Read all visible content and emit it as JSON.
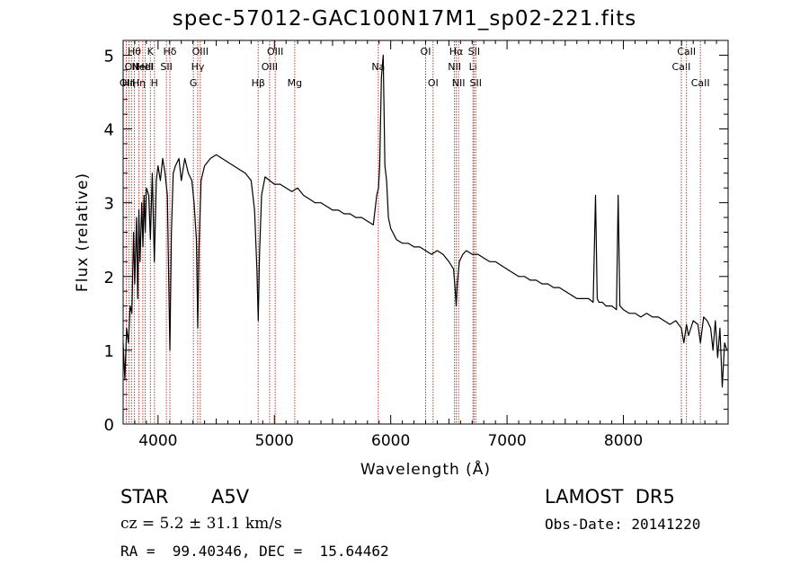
{
  "header": {
    "title": "spec-57012-GAC100N17M1_sp02-221.fits"
  },
  "info": {
    "object_class": "STAR",
    "subclass": "A5V",
    "cz": "cz = 5.2 ± 31.1 km/s",
    "radec": "RA =  99.40346, DEC =  15.64462",
    "survey": "LAMOST  DR5",
    "obs_date": "Obs-Date: 20141220"
  },
  "chart_data": {
    "type": "line",
    "xlabel": "Wavelength (Å)",
    "ylabel": "Flux (relative)",
    "xlim": [
      3700,
      8900
    ],
    "ylim": [
      0,
      5.2
    ],
    "xticks": [
      4000,
      5000,
      6000,
      7000,
      8000
    ],
    "yticks": [
      0,
      1,
      2,
      3,
      4,
      5
    ],
    "line_color": "#000000",
    "marker_color": "#c0392b",
    "series": [
      {
        "x": [
          3700,
          3715,
          3730,
          3745,
          3760,
          3775,
          3790,
          3800,
          3815,
          3825,
          3835,
          3845,
          3860,
          3870,
          3880,
          3890,
          3900,
          3920,
          3934,
          3950,
          3968,
          3985,
          4000,
          4020,
          4040,
          4060,
          4080,
          4090,
          4102,
          4115,
          4130,
          4150,
          4180,
          4200,
          4230,
          4260,
          4290,
          4310,
          4330,
          4341,
          4352,
          4370,
          4400,
          4450,
          4500,
          4550,
          4600,
          4650,
          4700,
          4750,
          4800,
          4830,
          4850,
          4861,
          4872,
          4890,
          4920,
          4960,
          5000,
          5050,
          5100,
          5150,
          5200,
          5250,
          5300,
          5350,
          5400,
          5450,
          5500,
          5550,
          5600,
          5650,
          5700,
          5750,
          5800,
          5850,
          5880,
          5895,
          5905,
          5920,
          5935,
          5950,
          5965,
          5980,
          6000,
          6050,
          6100,
          6150,
          6200,
          6250,
          6300,
          6350,
          6400,
          6450,
          6500,
          6540,
          6555,
          6563,
          6572,
          6590,
          6620,
          6650,
          6700,
          6750,
          6800,
          6850,
          6900,
          6950,
          7000,
          7050,
          7100,
          7150,
          7200,
          7250,
          7300,
          7350,
          7400,
          7450,
          7500,
          7550,
          7600,
          7650,
          7700,
          7740,
          7760,
          7775,
          7790,
          7820,
          7850,
          7900,
          7940,
          7955,
          7970,
          8000,
          8050,
          8100,
          8150,
          8200,
          8250,
          8300,
          8350,
          8400,
          8450,
          8498,
          8520,
          8542,
          8560,
          8600,
          8640,
          8662,
          8690,
          8720,
          8750,
          8770,
          8790,
          8810,
          8830,
          8850,
          8870,
          8890
        ],
        "y": [
          1.1,
          0.6,
          1.3,
          1.1,
          1.6,
          1.5,
          2.6,
          1.9,
          2.8,
          1.7,
          2.9,
          2.2,
          3.0,
          2.4,
          3.1,
          2.6,
          3.2,
          3.1,
          2.5,
          3.4,
          2.2,
          3.3,
          3.5,
          3.3,
          3.6,
          3.4,
          3.1,
          2.1,
          1.0,
          2.6,
          3.4,
          3.5,
          3.6,
          3.3,
          3.6,
          3.4,
          3.3,
          3.0,
          2.5,
          1.3,
          2.4,
          3.3,
          3.5,
          3.6,
          3.65,
          3.6,
          3.55,
          3.5,
          3.45,
          3.4,
          3.3,
          2.9,
          2.1,
          1.4,
          2.3,
          3.1,
          3.35,
          3.3,
          3.25,
          3.25,
          3.2,
          3.15,
          3.2,
          3.1,
          3.05,
          3.0,
          3.0,
          2.95,
          2.9,
          2.9,
          2.85,
          2.85,
          2.8,
          2.8,
          2.75,
          2.7,
          3.1,
          3.2,
          3.5,
          4.7,
          5.0,
          3.5,
          3.3,
          2.8,
          2.65,
          2.5,
          2.45,
          2.45,
          2.4,
          2.4,
          2.35,
          2.3,
          2.35,
          2.3,
          2.2,
          2.1,
          1.8,
          1.6,
          1.9,
          2.2,
          2.3,
          2.35,
          2.3,
          2.3,
          2.25,
          2.2,
          2.2,
          2.15,
          2.1,
          2.05,
          2.0,
          2.0,
          1.95,
          1.95,
          1.9,
          1.9,
          1.85,
          1.85,
          1.8,
          1.75,
          1.7,
          1.7,
          1.7,
          1.65,
          3.1,
          1.7,
          1.65,
          1.65,
          1.6,
          1.6,
          1.55,
          3.1,
          1.6,
          1.55,
          1.5,
          1.5,
          1.45,
          1.5,
          1.45,
          1.45,
          1.4,
          1.35,
          1.4,
          1.3,
          1.1,
          1.35,
          1.2,
          1.4,
          1.35,
          1.1,
          1.45,
          1.4,
          1.3,
          1.0,
          1.4,
          0.9,
          1.3,
          0.5,
          1.1,
          1.0
        ]
      }
    ],
    "line_markers": [
      {
        "x": 3727,
        "label": "OII",
        "row": 3
      },
      {
        "x": 3750,
        "label": "Hη",
        "row": 3
      },
      {
        "x": 3771,
        "label": "OII",
        "row": 2
      },
      {
        "x": 3797,
        "label": "Hθ",
        "row": 1
      },
      {
        "x": 3835,
        "label": "Hη",
        "row": 3
      },
      {
        "x": 3869,
        "label": "NeIII",
        "row": 2
      },
      {
        "x": 3889,
        "label": "HeI",
        "row": 2
      },
      {
        "x": 3934,
        "label": "K",
        "row": 1
      },
      {
        "x": 3969,
        "label": "H",
        "row": 3
      },
      {
        "x": 4072,
        "label": "SII",
        "row": 2
      },
      {
        "x": 4102,
        "label": "Hδ",
        "row": 1
      },
      {
        "x": 4304,
        "label": "G",
        "row": 3
      },
      {
        "x": 4341,
        "label": "Hγ",
        "row": 2
      },
      {
        "x": 4363,
        "label": "OIII",
        "row": 1
      },
      {
        "x": 4861,
        "label": "Hβ",
        "row": 3
      },
      {
        "x": 4959,
        "label": "OIII",
        "row": 2
      },
      {
        "x": 5007,
        "label": "OIII",
        "row": 1
      },
      {
        "x": 5175,
        "label": "Mg",
        "row": 3
      },
      {
        "x": 5893,
        "label": "Na",
        "row": 2
      },
      {
        "x": 6300,
        "label": "OI",
        "row": 1
      },
      {
        "x": 6364,
        "label": "OI",
        "row": 3
      },
      {
        "x": 6548,
        "label": "NII",
        "row": 2
      },
      {
        "x": 6563,
        "label": "Hα",
        "row": 1
      },
      {
        "x": 6583,
        "label": "NII",
        "row": 3
      },
      {
        "x": 6707,
        "label": "Li",
        "row": 2
      },
      {
        "x": 6716,
        "label": "SII",
        "row": 1
      },
      {
        "x": 6731,
        "label": "SII",
        "row": 3
      },
      {
        "x": 8498,
        "label": "CaII",
        "row": 2
      },
      {
        "x": 8542,
        "label": "CaII",
        "row": 1
      },
      {
        "x": 8662,
        "label": "CaII",
        "row": 3
      }
    ]
  }
}
